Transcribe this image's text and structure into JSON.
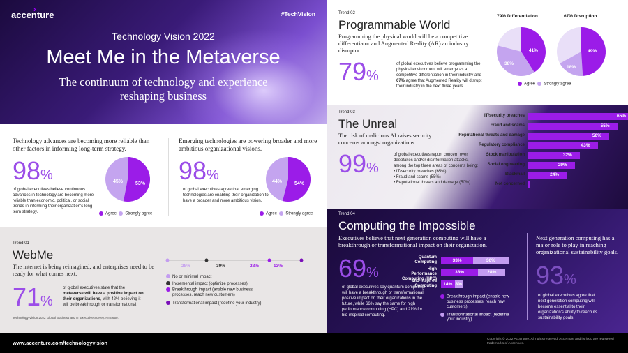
{
  "hero": {
    "brand": "accenture",
    "hashtag": "#TechVision",
    "vision": "Technology Vision 2022",
    "headline": "Meet Me in the Metaverse",
    "subtitle": "The continuum of technology and experience reshaping business"
  },
  "stats": [
    {
      "heading": "Technology advances are becoming more reliable than other factors in informing long-term strategy.",
      "big": "98",
      "pct": "%",
      "text": "of global executives believe continuous advances in technology are becoming more reliable than economic, political, or social trends in informing their organization's long-term strategy.",
      "slices": [
        {
          "label": "45%",
          "value": 45,
          "name": "Agree"
        },
        {
          "label": "53%",
          "value": 53,
          "name": "Strongly agree"
        }
      ]
    },
    {
      "heading": "Emerging technologies are powering broader and more ambitious organizational visions.",
      "big": "98",
      "pct": "%",
      "text": "of global executives agree that emerging technologies are enabling their organization to have a broader and more ambitious vision.",
      "slices": [
        {
          "label": "44%",
          "value": 44,
          "name": "Agree"
        },
        {
          "label": "54%",
          "value": 54,
          "name": "Strongly agree"
        }
      ]
    }
  ],
  "legend": {
    "agree": "Agree",
    "strongly": "Strongly agree"
  },
  "colors": {
    "agree": "#c4a4ef",
    "strongly": "#9b1ce8",
    "purple": "#a100ff",
    "big": "#9b4de8",
    "bar_dark": "#9b1ce8",
    "bar_light": "#c39cf0"
  },
  "webme": {
    "trend": "Trend 01",
    "title": "WebMe",
    "subtitle": "The internet is being reimagined, and enterprises need to be ready for what comes next.",
    "big": "71",
    "pct": "%",
    "text_a": "of global executives state that the ",
    "text_b": "metaverse will have a positive impact on their organizations",
    "text_c": ", with 42% believing it will be breakthrough or transformational.",
    "source": "Technology Vision 2022 Global Business and IT Executive Survey. N=4,650.",
    "impact_values": [
      {
        "label": "28%",
        "value": 28
      },
      {
        "label": "30%",
        "value": 30
      },
      {
        "label": "28%",
        "value": 28
      },
      {
        "label": "13%",
        "value": 13
      }
    ],
    "impact_legend": [
      "No or minimal impact",
      "Incremental impact (optimize processes)",
      "Breakthrough impact (enable new business processes, reach new customers)",
      "Transformational impact (redefine your industry)"
    ]
  },
  "pw": {
    "trend": "Trend 02",
    "title": "Programmable World",
    "subtitle": "Programming the physical world will be a competitive differentiator and Augmented Reality (AR) an industry disruptor.",
    "big": "79",
    "pct": "%",
    "text_a": "of global executives believe programming the physical environment will emerge as a competitive differentiation in their industry and ",
    "text_b": "67%",
    "text_c": " agree that Augmented Reality will disrupt their industry in the next three years.",
    "pie1_title": "79% Differentiation",
    "pie1": [
      {
        "label": "38%",
        "value": 38,
        "name": "Agree"
      },
      {
        "label": "41%",
        "value": 41,
        "name": "Strongly agree"
      }
    ],
    "pie2_title": "67% Disruption",
    "pie2": [
      {
        "label": "18%",
        "value": 18,
        "name": "Agree"
      },
      {
        "label": "49%",
        "value": 49,
        "name": "Strongly agree"
      }
    ]
  },
  "unreal": {
    "trend": "Trend 03",
    "title": "The Unreal",
    "subtitle": "The risk of malicious AI raises security concerns amongst organizations.",
    "big": "99",
    "pct": "%",
    "text": "of global executives report concern over deepfakes and/or disinformation attacks, among the top three areas of concerns being:",
    "bullets": [
      "IT/security breaches (65%)",
      "Fraud and scams (55%)",
      "Reputational threats and damage (50%)"
    ],
    "bars": [
      {
        "label": "IT/security breaches",
        "value": 65,
        "text": "65%"
      },
      {
        "label": "Fraud and scams",
        "value": 55,
        "text": "55%"
      },
      {
        "label": "Reputational threats and damage",
        "value": 50,
        "text": "50%"
      },
      {
        "label": "Regulatory compliance",
        "value": 43,
        "text": "43%"
      },
      {
        "label": "Stock manipulation",
        "value": 32,
        "text": "32%"
      },
      {
        "label": "Social engineering",
        "value": 29,
        "text": "29%"
      },
      {
        "label": "Blackmail",
        "value": 24,
        "text": "24%"
      },
      {
        "label": "Not concerned",
        "value": 1,
        "text": ""
      }
    ]
  },
  "comp": {
    "trend": "Trend 04",
    "title": "Computing the Impossible",
    "subtitle": "Executives believe that next generation computing will have a breakthrough or transformational impact on their organization.",
    "big": "69",
    "pct": "%",
    "text": "of global executives say quantum computing will have a breakthrough or transformational positive impact on their organizations in the future, while 66% say the same for high performance computing (HPC) and 21% for bio-inspired computing.",
    "bars": [
      {
        "label": "Quantum Computing",
        "a": 33,
        "a_text": "33%",
        "b": 36,
        "b_text": "36%"
      },
      {
        "label": "High Performance Computing (HPC)",
        "a": 38,
        "a_text": "38%",
        "b": 28,
        "b_text": "28%"
      },
      {
        "label": "Bio-Inspired Computing",
        "a": 14,
        "a_text": "14%",
        "b": 8,
        "b_text": "8%"
      }
    ],
    "legend_a": "Breakthrough impact (enable new business processes, reach new customers)",
    "legend_b": "Transformational impact (redefine your industry)",
    "side_title": "Next generation computing has a major role to play in reaching organizational sustainability goals.",
    "side_big": "93",
    "side_pct": "%",
    "side_text": "of global executives agree that next generation computing will become essential to their organization's ability to reach its sustainability goals."
  },
  "footer": {
    "url": "www.accenture.com/technologyvision",
    "copy": "Copyright © 2022 Accenture. All rights reserved. Accenture and its logo are registered trademarks of Accenture."
  }
}
